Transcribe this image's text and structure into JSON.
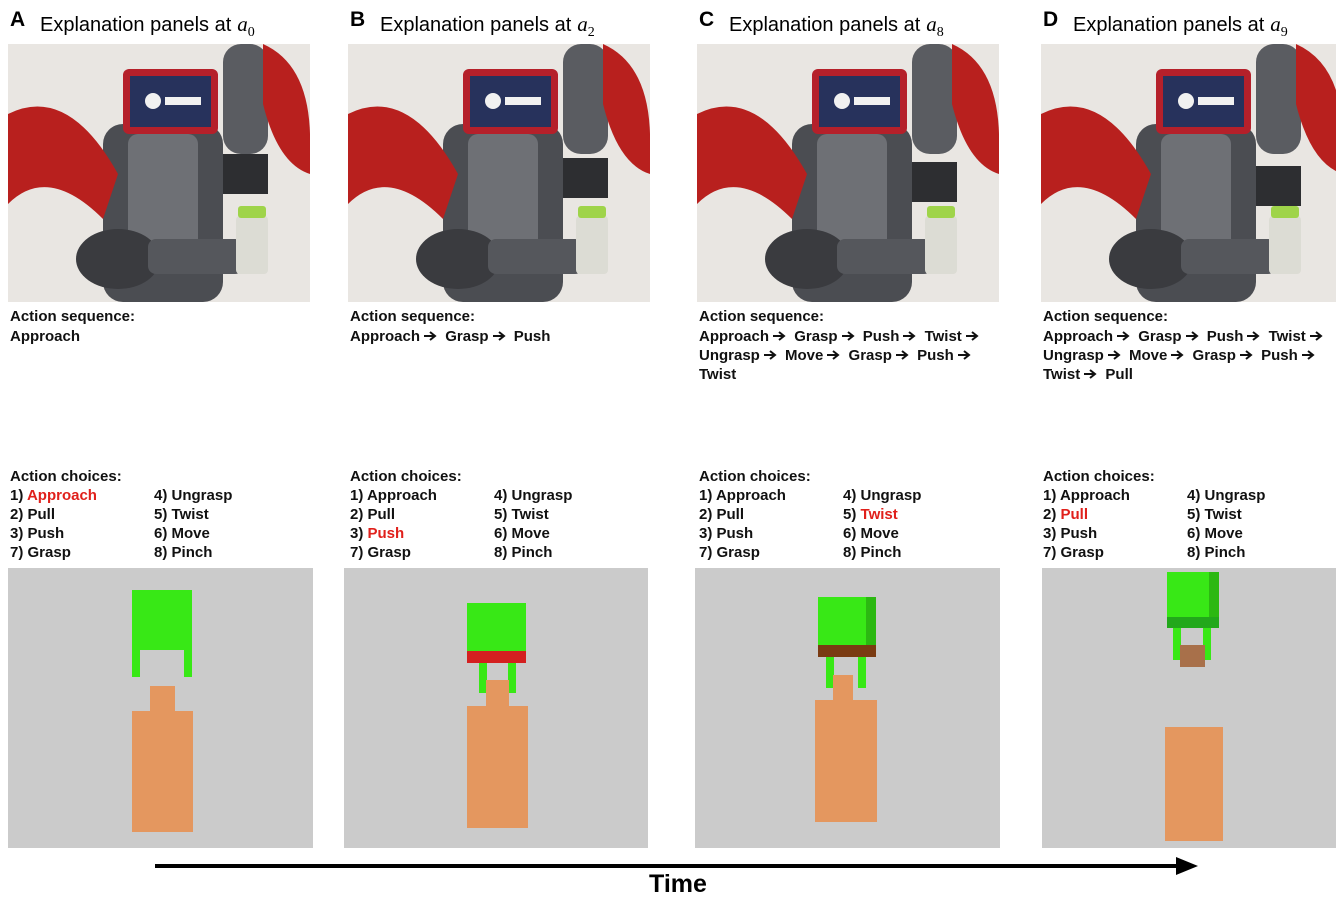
{
  "panels": [
    {
      "letter": "A",
      "title": "Explanation panels at",
      "var": "a",
      "sub": "0",
      "sequence_label": "Action sequence:",
      "sequence": [
        "Approach"
      ],
      "choices_label": "Action choices:",
      "choices": [
        {
          "num": "1)",
          "name": "Approach"
        },
        {
          "num": "2)",
          "name": "Pull"
        },
        {
          "num": "3)",
          "name": "Push"
        },
        {
          "num": "7)",
          "name": "Grasp"
        },
        {
          "num": "4)",
          "name": "Ungrasp"
        },
        {
          "num": "5)",
          "name": "Twist"
        },
        {
          "num": "6)",
          "name": "Move"
        },
        {
          "num": "8)",
          "name": "Pinch"
        }
      ],
      "highlighted": 0,
      "highlight_color": "#e0201b"
    },
    {
      "letter": "B",
      "title": "Explanation panels at",
      "var": "a",
      "sub": "2",
      "sequence_label": "Action sequence:",
      "sequence": [
        "Approach",
        "Grasp",
        "Push"
      ],
      "choices_label": "Action choices:",
      "choices": [
        {
          "num": "1)",
          "name": "Approach"
        },
        {
          "num": "2)",
          "name": "Pull"
        },
        {
          "num": "3)",
          "name": "Push"
        },
        {
          "num": "7)",
          "name": "Grasp"
        },
        {
          "num": "4)",
          "name": "Ungrasp"
        },
        {
          "num": "5)",
          "name": "Twist"
        },
        {
          "num": "6)",
          "name": "Move"
        },
        {
          "num": "8)",
          "name": "Pinch"
        }
      ],
      "highlighted": 2,
      "highlight_color": "#e0201b"
    },
    {
      "letter": "C",
      "title": "Explanation panels at",
      "var": "a",
      "sub": "8",
      "sequence_label": "Action sequence:",
      "sequence": [
        "Approach",
        "Grasp",
        "Push",
        "Twist",
        "Ungrasp",
        "Move",
        "Grasp",
        "Push",
        "Twist"
      ],
      "choices_label": "Action choices:",
      "choices": [
        {
          "num": "1)",
          "name": "Approach"
        },
        {
          "num": "2)",
          "name": "Pull"
        },
        {
          "num": "3)",
          "name": "Push"
        },
        {
          "num": "7)",
          "name": "Grasp"
        },
        {
          "num": "4)",
          "name": "Ungrasp"
        },
        {
          "num": "5)",
          "name": "Twist"
        },
        {
          "num": "6)",
          "name": "Move"
        },
        {
          "num": "8)",
          "name": "Pinch"
        }
      ],
      "highlighted": 5,
      "highlight_color": "#e0201b"
    },
    {
      "letter": "D",
      "title": "Explanation panels at",
      "var": "a",
      "sub": "9",
      "sequence_label": "Action sequence:",
      "sequence": [
        "Approach",
        "Grasp",
        "Push",
        "Twist",
        "Ungrasp",
        "Move",
        "Grasp",
        "Push",
        "Twist",
        "Pull"
      ],
      "choices_label": "Action choices:",
      "choices": [
        {
          "num": "1)",
          "name": "Approach"
        },
        {
          "num": "2)",
          "name": "Pull"
        },
        {
          "num": "3)",
          "name": "Push"
        },
        {
          "num": "7)",
          "name": "Grasp"
        },
        {
          "num": "4)",
          "name": "Ungrasp"
        },
        {
          "num": "5)",
          "name": "Twist"
        },
        {
          "num": "6)",
          "name": "Move"
        },
        {
          "num": "8)",
          "name": "Pinch"
        }
      ],
      "highlighted": 1,
      "highlight_color": "#e0201b"
    }
  ],
  "time_label": "Time"
}
